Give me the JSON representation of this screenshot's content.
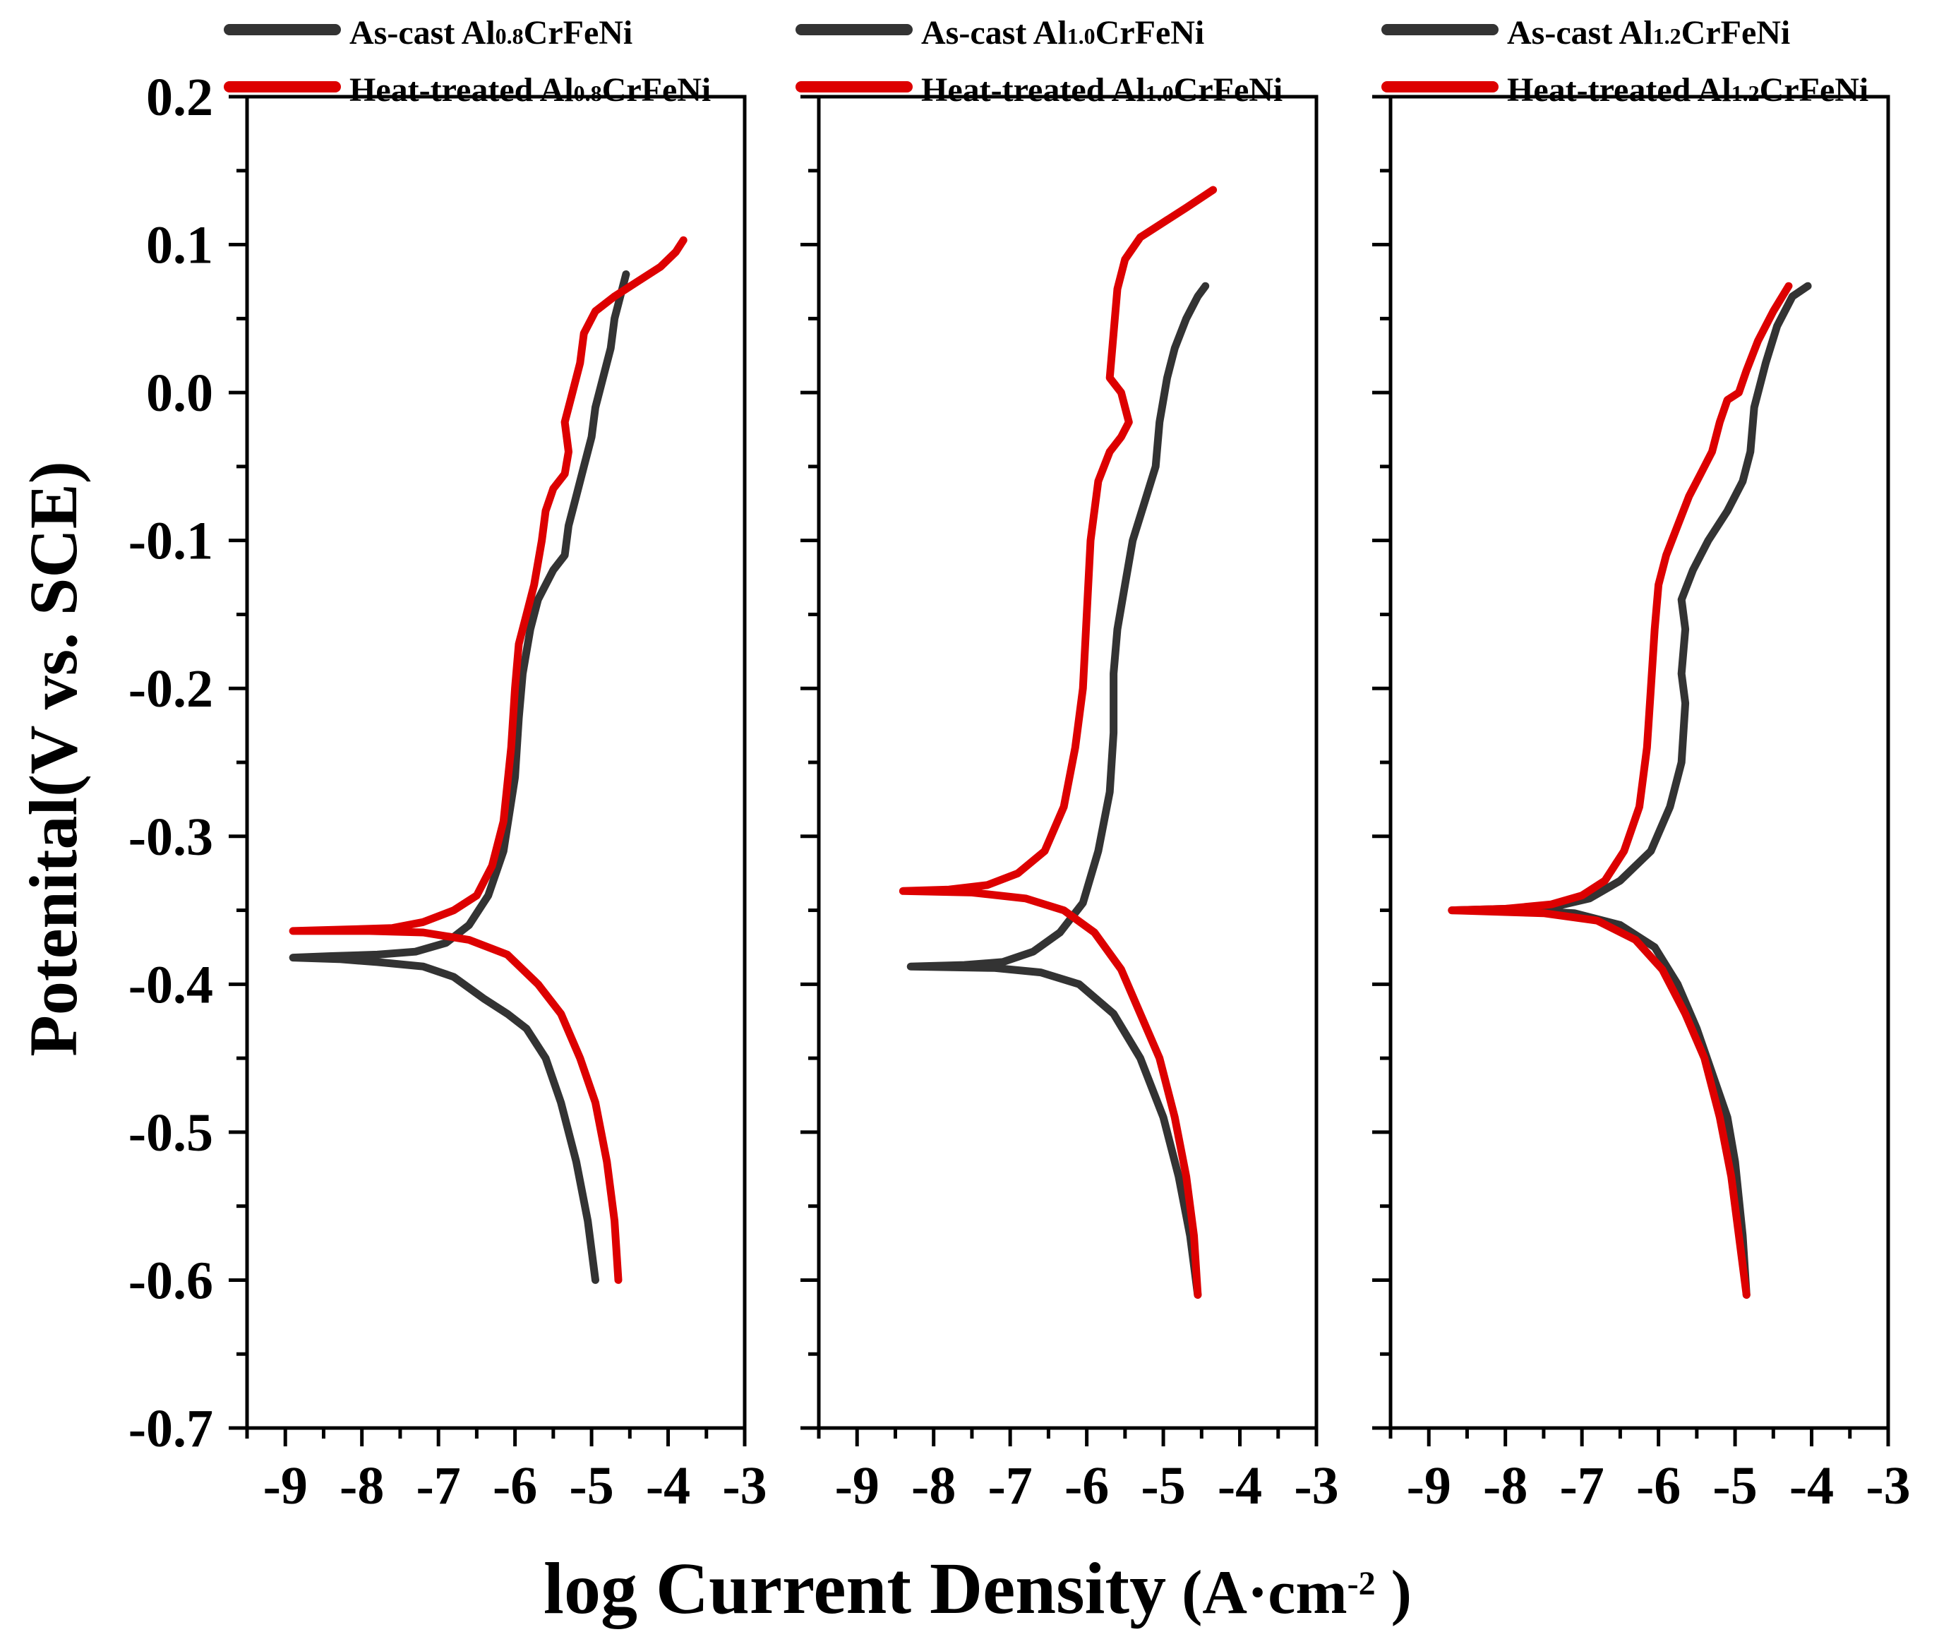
{
  "chart_data": {
    "type": "line",
    "xlabel": "log Current Density",
    "xlabel_unit": "A·cm",
    "xlabel_unit_exp": "-2",
    "ylabel": "Potenital(V vs. SCE)",
    "xlim": [
      -9.5,
      -3
    ],
    "ylim": [
      -0.7,
      0.2
    ],
    "x_ticks": [
      "-9",
      "-8",
      "-7",
      "-6",
      "-5",
      "-4",
      "-3"
    ],
    "y_ticks": [
      "0.2",
      "0.1",
      "0.0",
      "-0.1",
      "-0.2",
      "-0.3",
      "-0.4",
      "-0.5",
      "-0.6",
      "-0.7"
    ],
    "panels": [
      {
        "legend": [
          {
            "prefix": "As-cast Al",
            "sub": "0.8",
            "suffix": "CrFeNi",
            "color": "#333333"
          },
          {
            "prefix": "Heat-treated Al",
            "sub": "0.8",
            "suffix": "CrFeNi",
            "color": "#dd0000"
          }
        ],
        "series": [
          {
            "name": "As-cast Al0.8CrFeNi",
            "color": "#333333",
            "points": [
              [
                -4.95,
                -0.6
              ],
              [
                -5.05,
                -0.56
              ],
              [
                -5.2,
                -0.52
              ],
              [
                -5.4,
                -0.48
              ],
              [
                -5.6,
                -0.45
              ],
              [
                -5.85,
                -0.43
              ],
              [
                -6.1,
                -0.42
              ],
              [
                -6.4,
                -0.41
              ],
              [
                -6.8,
                -0.395
              ],
              [
                -7.2,
                -0.388
              ],
              [
                -7.8,
                -0.385
              ],
              [
                -8.3,
                -0.383
              ],
              [
                -8.9,
                -0.382
              ],
              [
                -8.4,
                -0.381
              ],
              [
                -7.8,
                -0.38
              ],
              [
                -7.3,
                -0.378
              ],
              [
                -6.9,
                -0.372
              ],
              [
                -6.6,
                -0.36
              ],
              [
                -6.35,
                -0.34
              ],
              [
                -6.15,
                -0.31
              ],
              [
                -6.0,
                -0.26
              ],
              [
                -5.95,
                -0.22
              ],
              [
                -5.9,
                -0.19
              ],
              [
                -5.8,
                -0.16
              ],
              [
                -5.7,
                -0.14
              ],
              [
                -5.5,
                -0.12
              ],
              [
                -5.35,
                -0.11
              ],
              [
                -5.3,
                -0.09
              ],
              [
                -5.2,
                -0.07
              ],
              [
                -5.1,
                -0.05
              ],
              [
                -5.0,
                -0.03
              ],
              [
                -4.95,
                -0.01
              ],
              [
                -4.85,
                0.01
              ],
              [
                -4.75,
                0.03
              ],
              [
                -4.7,
                0.05
              ],
              [
                -4.6,
                0.07
              ],
              [
                -4.55,
                0.08
              ]
            ]
          },
          {
            "name": "Heat-treated Al0.8CrFeNi",
            "color": "#dd0000",
            "points": [
              [
                -4.65,
                -0.6
              ],
              [
                -4.7,
                -0.56
              ],
              [
                -4.8,
                -0.52
              ],
              [
                -4.95,
                -0.48
              ],
              [
                -5.15,
                -0.45
              ],
              [
                -5.4,
                -0.42
              ],
              [
                -5.7,
                -0.4
              ],
              [
                -6.1,
                -0.38
              ],
              [
                -6.6,
                -0.37
              ],
              [
                -7.2,
                -0.365
              ],
              [
                -7.9,
                -0.364
              ],
              [
                -8.9,
                -0.364
              ],
              [
                -8.2,
                -0.363
              ],
              [
                -7.6,
                -0.362
              ],
              [
                -7.2,
                -0.358
              ],
              [
                -6.8,
                -0.35
              ],
              [
                -6.5,
                -0.34
              ],
              [
                -6.3,
                -0.32
              ],
              [
                -6.15,
                -0.29
              ],
              [
                -6.05,
                -0.24
              ],
              [
                -6.0,
                -0.2
              ],
              [
                -5.95,
                -0.17
              ],
              [
                -5.85,
                -0.15
              ],
              [
                -5.75,
                -0.13
              ],
              [
                -5.65,
                -0.1
              ],
              [
                -5.6,
                -0.08
              ],
              [
                -5.5,
                -0.065
              ],
              [
                -5.35,
                -0.055
              ],
              [
                -5.3,
                -0.04
              ],
              [
                -5.35,
                -0.02
              ],
              [
                -5.25,
                0.0
              ],
              [
                -5.15,
                0.02
              ],
              [
                -5.1,
                0.04
              ],
              [
                -4.95,
                0.055
              ],
              [
                -4.7,
                0.065
              ],
              [
                -4.4,
                0.075
              ],
              [
                -4.1,
                0.085
              ],
              [
                -3.9,
                0.095
              ],
              [
                -3.8,
                0.103
              ]
            ]
          }
        ]
      },
      {
        "legend": [
          {
            "prefix": "As-cast Al",
            "sub": "1.0",
            "suffix": "CrFeNi",
            "color": "#333333"
          },
          {
            "prefix": "Heat-treated Al",
            "sub": "1.0",
            "suffix": "CrFeNi",
            "color": "#dd0000"
          }
        ],
        "series": [
          {
            "name": "As-cast Al1.0CrFeNi",
            "color": "#333333",
            "points": [
              [
                -4.55,
                -0.61
              ],
              [
                -4.65,
                -0.57
              ],
              [
                -4.8,
                -0.53
              ],
              [
                -5.0,
                -0.49
              ],
              [
                -5.3,
                -0.45
              ],
              [
                -5.65,
                -0.42
              ],
              [
                -6.1,
                -0.4
              ],
              [
                -6.6,
                -0.392
              ],
              [
                -7.2,
                -0.389
              ],
              [
                -8.3,
                -0.388
              ],
              [
                -7.6,
                -0.387
              ],
              [
                -7.1,
                -0.385
              ],
              [
                -6.7,
                -0.378
              ],
              [
                -6.35,
                -0.365
              ],
              [
                -6.05,
                -0.345
              ],
              [
                -5.85,
                -0.31
              ],
              [
                -5.7,
                -0.27
              ],
              [
                -5.65,
                -0.23
              ],
              [
                -5.65,
                -0.19
              ],
              [
                -5.6,
                -0.16
              ],
              [
                -5.5,
                -0.13
              ],
              [
                -5.4,
                -0.1
              ],
              [
                -5.25,
                -0.075
              ],
              [
                -5.1,
                -0.05
              ],
              [
                -5.05,
                -0.02
              ],
              [
                -4.95,
                0.01
              ],
              [
                -4.85,
                0.03
              ],
              [
                -4.7,
                0.05
              ],
              [
                -4.55,
                0.065
              ],
              [
                -4.45,
                0.072
              ]
            ]
          },
          {
            "name": "Heat-treated Al1.0CrFeNi",
            "color": "#dd0000",
            "points": [
              [
                -4.55,
                -0.61
              ],
              [
                -4.6,
                -0.57
              ],
              [
                -4.7,
                -0.53
              ],
              [
                -4.85,
                -0.49
              ],
              [
                -5.05,
                -0.45
              ],
              [
                -5.3,
                -0.42
              ],
              [
                -5.55,
                -0.39
              ],
              [
                -5.9,
                -0.365
              ],
              [
                -6.3,
                -0.35
              ],
              [
                -6.8,
                -0.342
              ],
              [
                -7.5,
                -0.338
              ],
              [
                -8.4,
                -0.337
              ],
              [
                -7.8,
                -0.336
              ],
              [
                -7.3,
                -0.333
              ],
              [
                -6.9,
                -0.325
              ],
              [
                -6.55,
                -0.31
              ],
              [
                -6.3,
                -0.28
              ],
              [
                -6.15,
                -0.24
              ],
              [
                -6.05,
                -0.2
              ],
              [
                -6.0,
                -0.15
              ],
              [
                -5.95,
                -0.1
              ],
              [
                -5.85,
                -0.06
              ],
              [
                -5.7,
                -0.04
              ],
              [
                -5.55,
                -0.03
              ],
              [
                -5.45,
                -0.02
              ],
              [
                -5.55,
                0.0
              ],
              [
                -5.7,
                0.01
              ],
              [
                -5.65,
                0.04
              ],
              [
                -5.6,
                0.07
              ],
              [
                -5.5,
                0.09
              ],
              [
                -5.3,
                0.105
              ],
              [
                -5.0,
                0.115
              ],
              [
                -4.7,
                0.125
              ],
              [
                -4.35,
                0.137
              ]
            ]
          }
        ]
      },
      {
        "legend": [
          {
            "prefix": "As-cast Al",
            "sub": "1.2",
            "suffix": "CrFeNi",
            "color": "#333333"
          },
          {
            "prefix": "Heat-treated Al",
            "sub": "1.2",
            "suffix": "CrFeNi",
            "color": "#dd0000"
          }
        ],
        "series": [
          {
            "name": "As-cast Al1.2CrFeNi",
            "color": "#333333",
            "points": [
              [
                -4.85,
                -0.61
              ],
              [
                -4.9,
                -0.57
              ],
              [
                -5.0,
                -0.52
              ],
              [
                -5.1,
                -0.49
              ],
              [
                -5.3,
                -0.46
              ],
              [
                -5.5,
                -0.43
              ],
              [
                -5.75,
                -0.4
              ],
              [
                -6.05,
                -0.375
              ],
              [
                -6.5,
                -0.36
              ],
              [
                -7.1,
                -0.352
              ],
              [
                -7.8,
                -0.35
              ],
              [
                -8.7,
                -0.35
              ],
              [
                -8.0,
                -0.349
              ],
              [
                -7.4,
                -0.348
              ],
              [
                -6.9,
                -0.342
              ],
              [
                -6.5,
                -0.33
              ],
              [
                -6.1,
                -0.31
              ],
              [
                -5.85,
                -0.28
              ],
              [
                -5.7,
                -0.25
              ],
              [
                -5.65,
                -0.21
              ],
              [
                -5.7,
                -0.19
              ],
              [
                -5.65,
                -0.16
              ],
              [
                -5.7,
                -0.14
              ],
              [
                -5.55,
                -0.12
              ],
              [
                -5.35,
                -0.1
              ],
              [
                -5.1,
                -0.08
              ],
              [
                -4.9,
                -0.06
              ],
              [
                -4.8,
                -0.04
              ],
              [
                -4.75,
                -0.01
              ],
              [
                -4.6,
                0.02
              ],
              [
                -4.45,
                0.045
              ],
              [
                -4.25,
                0.065
              ],
              [
                -4.05,
                0.072
              ]
            ]
          },
          {
            "name": "Heat-treated Al1.2CrFeNi",
            "color": "#dd0000",
            "points": [
              [
                -4.85,
                -0.61
              ],
              [
                -4.95,
                -0.57
              ],
              [
                -5.05,
                -0.53
              ],
              [
                -5.2,
                -0.49
              ],
              [
                -5.4,
                -0.45
              ],
              [
                -5.65,
                -0.42
              ],
              [
                -5.95,
                -0.39
              ],
              [
                -6.3,
                -0.37
              ],
              [
                -6.8,
                -0.357
              ],
              [
                -7.5,
                -0.352
              ],
              [
                -8.7,
                -0.35
              ],
              [
                -8.0,
                -0.349
              ],
              [
                -7.4,
                -0.346
              ],
              [
                -7.0,
                -0.34
              ],
              [
                -6.7,
                -0.33
              ],
              [
                -6.45,
                -0.31
              ],
              [
                -6.25,
                -0.28
              ],
              [
                -6.15,
                -0.24
              ],
              [
                -6.1,
                -0.2
              ],
              [
                -6.05,
                -0.16
              ],
              [
                -6.0,
                -0.13
              ],
              [
                -5.9,
                -0.11
              ],
              [
                -5.75,
                -0.09
              ],
              [
                -5.6,
                -0.07
              ],
              [
                -5.45,
                -0.055
              ],
              [
                -5.3,
                -0.04
              ],
              [
                -5.2,
                -0.02
              ],
              [
                -5.1,
                -0.005
              ],
              [
                -4.95,
                0.0
              ],
              [
                -4.85,
                0.015
              ],
              [
                -4.7,
                0.035
              ],
              [
                -4.5,
                0.055
              ],
              [
                -4.3,
                0.072
              ]
            ]
          }
        ]
      }
    ]
  }
}
